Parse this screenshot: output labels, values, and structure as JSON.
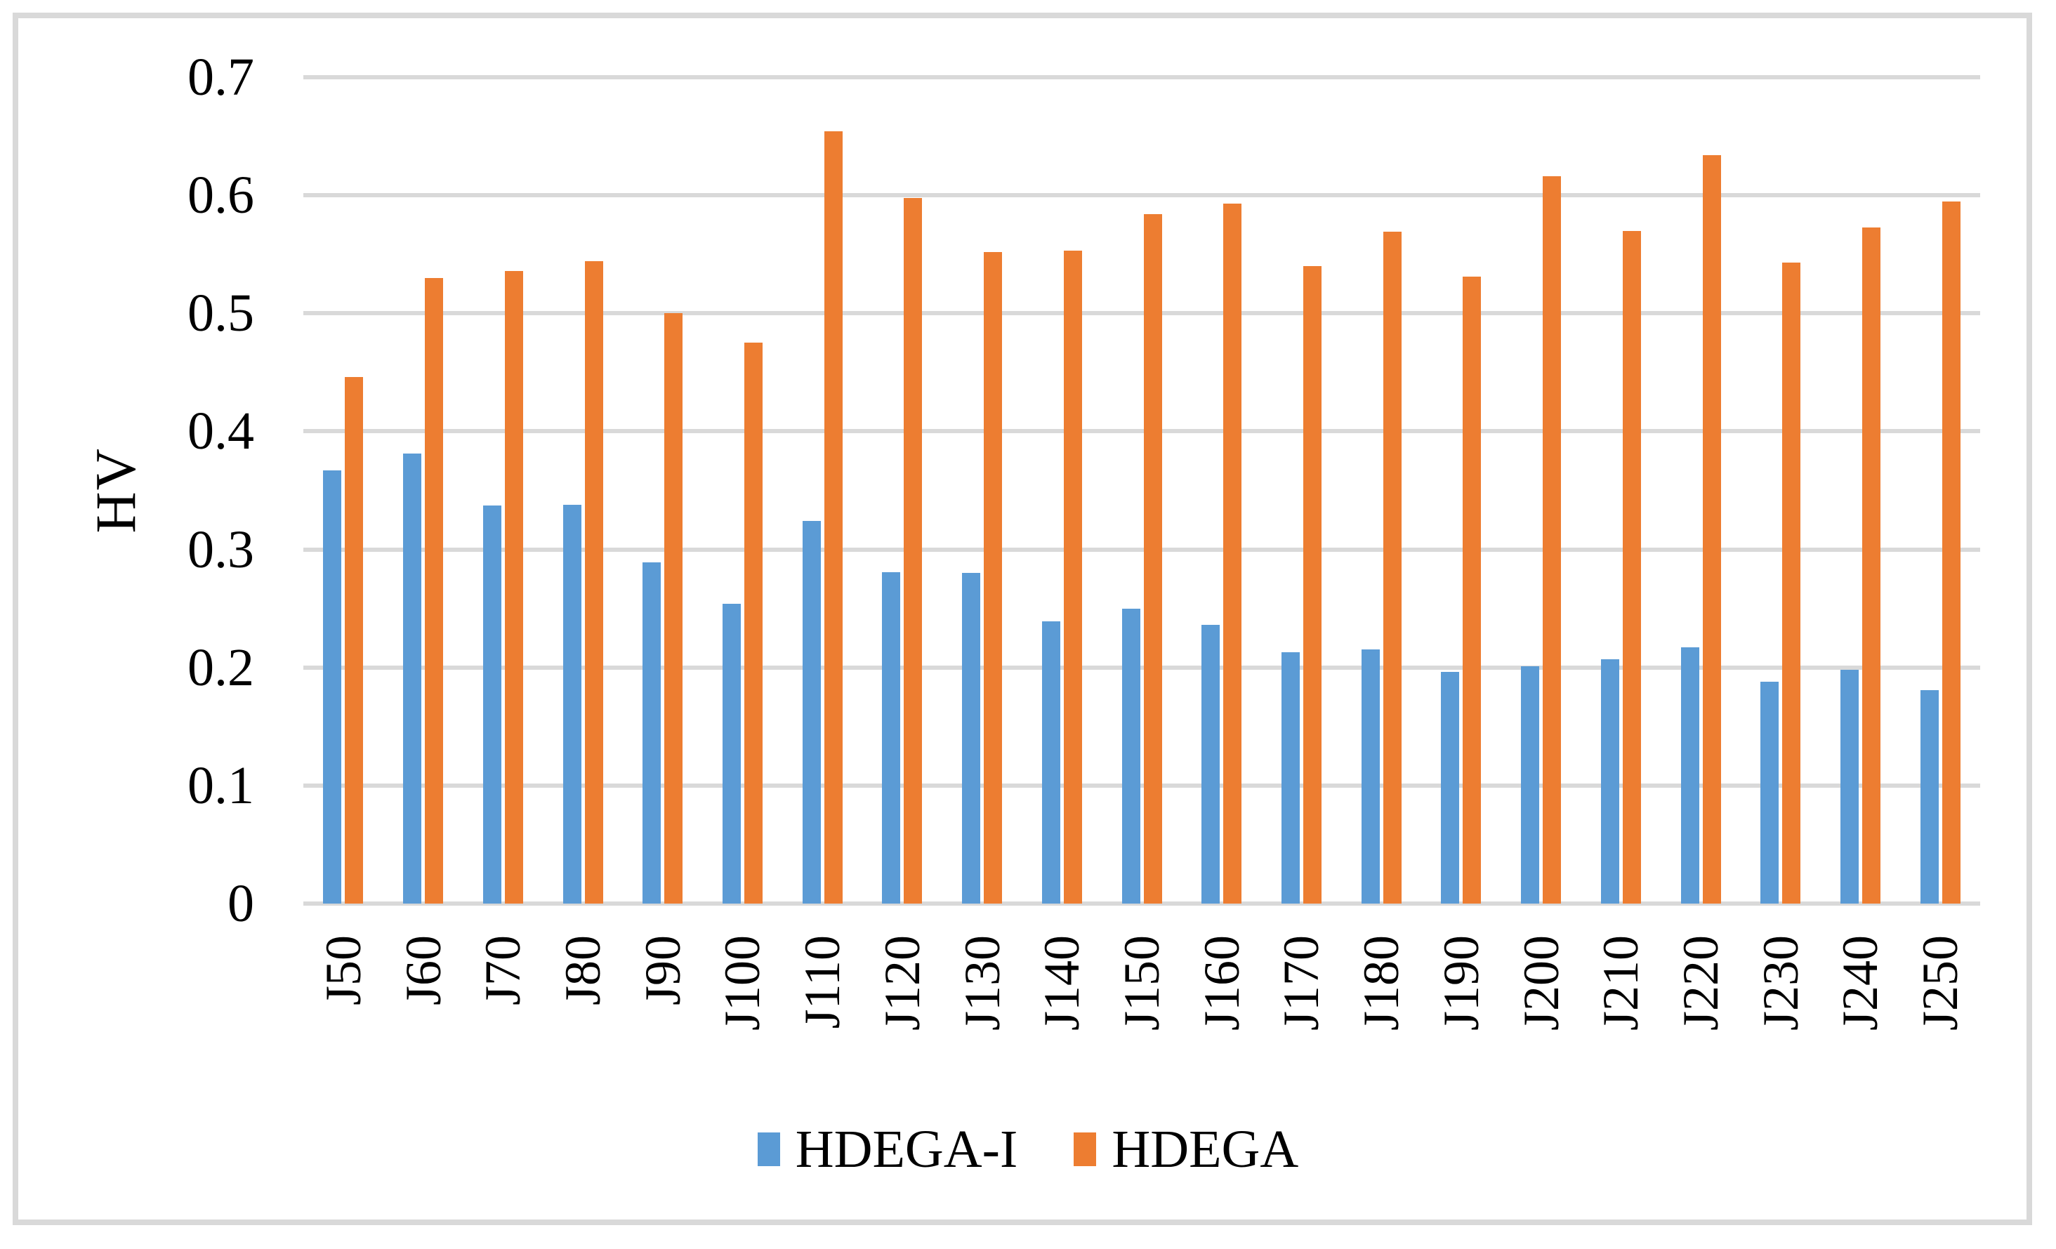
{
  "chart_data": {
    "type": "bar",
    "title": "",
    "ylabel": "HV",
    "xlabel": "",
    "ylim": [
      0,
      0.7
    ],
    "ytick_step": 0.1,
    "yticks": [
      "0",
      "0.1",
      "0.2",
      "0.3",
      "0.4",
      "0.5",
      "0.6",
      "0.7"
    ],
    "grid": true,
    "legend_position": "bottom-center",
    "gridline_color": "#d9d9d9",
    "frame_color": "#d9d9d9",
    "categories": [
      "J50",
      "J60",
      "J70",
      "J80",
      "J90",
      "J100",
      "J110",
      "J120",
      "J130",
      "J140",
      "J150",
      "J160",
      "J170",
      "J180",
      "J190",
      "J200",
      "J210",
      "J220",
      "J230",
      "J240",
      "J250"
    ],
    "series": [
      {
        "name": "HDEGA-I",
        "color": "#5b9bd5",
        "values": [
          0.367,
          0.381,
          0.337,
          0.338,
          0.289,
          0.254,
          0.324,
          0.281,
          0.28,
          0.239,
          0.25,
          0.236,
          0.213,
          0.215,
          0.196,
          0.201,
          0.207,
          0.217,
          0.188,
          0.198,
          0.181
        ]
      },
      {
        "name": "HDEGA",
        "color": "#ed7d31",
        "values": [
          0.446,
          0.53,
          0.536,
          0.544,
          0.5,
          0.475,
          0.654,
          0.598,
          0.552,
          0.553,
          0.584,
          0.593,
          0.54,
          0.569,
          0.531,
          0.616,
          0.57,
          0.634,
          0.543,
          0.573,
          0.595
        ]
      }
    ]
  }
}
